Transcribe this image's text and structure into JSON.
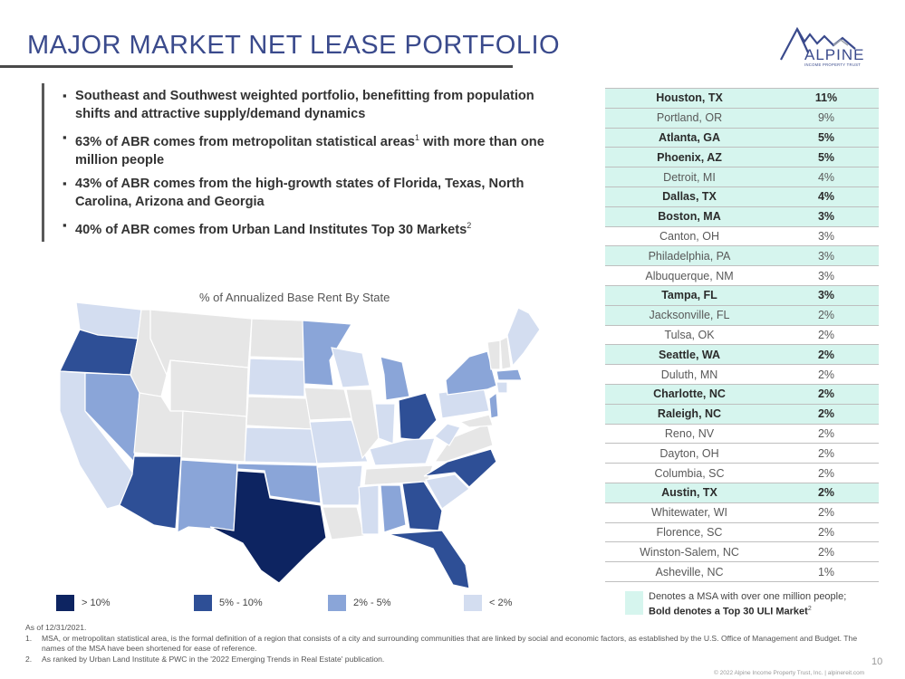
{
  "header": {
    "title": "MAJOR MARKET NET LEASE PORTFOLIO",
    "logo_text": "ALPINE",
    "logo_subtext": "INCOME PROPERTY TRUST"
  },
  "bullets": [
    "Southeast and Southwest weighted portfolio, benefitting from population shifts and attractive supply/demand dynamics",
    "63% of ABR comes from metropolitan statistical areas",
    "with more than one million people",
    "43% of ABR comes from the high-growth states of Florida, Texas, North Carolina, Arizona and Georgia",
    "40% of ABR comes from Urban Land Institutes Top 30 Markets"
  ],
  "superscripts": {
    "one": "1",
    "two": "2"
  },
  "map": {
    "title": "% of Annualized Base Rent By State",
    "colors": {
      "gt10": "#0d2461",
      "r5_10": "#2e4f96",
      "r2_5": "#8aa5d8",
      "lt2": "#d3ddf0",
      "none": "#e6e6e6"
    },
    "legend": [
      {
        "label": "> 10%",
        "color": "#0d2461"
      },
      {
        "label": "5% - 10%",
        "color": "#2e4f96"
      },
      {
        "label": "2% - 5%",
        "color": "#8aa5d8"
      },
      {
        "label": "< 2%",
        "color": "#d3ddf0"
      }
    ]
  },
  "table": {
    "highlight_color": "#d6f5ee",
    "rows": [
      {
        "city": "Houston, TX",
        "pct": "11%",
        "bold": true,
        "hl": true
      },
      {
        "city": "Portland, OR",
        "pct": "9%",
        "bold": false,
        "hl": true
      },
      {
        "city": "Atlanta, GA",
        "pct": "5%",
        "bold": true,
        "hl": true
      },
      {
        "city": "Phoenix, AZ",
        "pct": "5%",
        "bold": true,
        "hl": true
      },
      {
        "city": "Detroit, MI",
        "pct": "4%",
        "bold": false,
        "hl": true
      },
      {
        "city": "Dallas, TX",
        "pct": "4%",
        "bold": true,
        "hl": true
      },
      {
        "city": "Boston, MA",
        "pct": "3%",
        "bold": true,
        "hl": true
      },
      {
        "city": "Canton, OH",
        "pct": "3%",
        "bold": false,
        "hl": false
      },
      {
        "city": "Philadelphia, PA",
        "pct": "3%",
        "bold": false,
        "hl": true
      },
      {
        "city": "Albuquerque, NM",
        "pct": "3%",
        "bold": false,
        "hl": false
      },
      {
        "city": "Tampa, FL",
        "pct": "3%",
        "bold": true,
        "hl": true
      },
      {
        "city": "Jacksonville, FL",
        "pct": "2%",
        "bold": false,
        "hl": true
      },
      {
        "city": "Tulsa, OK",
        "pct": "2%",
        "bold": false,
        "hl": false
      },
      {
        "city": "Seattle, WA",
        "pct": "2%",
        "bold": true,
        "hl": true
      },
      {
        "city": "Duluth, MN",
        "pct": "2%",
        "bold": false,
        "hl": false
      },
      {
        "city": "Charlotte, NC",
        "pct": "2%",
        "bold": true,
        "hl": true
      },
      {
        "city": "Raleigh, NC",
        "pct": "2%",
        "bold": true,
        "hl": true
      },
      {
        "city": "Reno, NV",
        "pct": "2%",
        "bold": false,
        "hl": false
      },
      {
        "city": "Dayton, OH",
        "pct": "2%",
        "bold": false,
        "hl": false
      },
      {
        "city": "Columbia, SC",
        "pct": "2%",
        "bold": false,
        "hl": false
      },
      {
        "city": "Austin, TX",
        "pct": "2%",
        "bold": true,
        "hl": true
      },
      {
        "city": "Whitewater, WI",
        "pct": "2%",
        "bold": false,
        "hl": false
      },
      {
        "city": "Florence, SC",
        "pct": "2%",
        "bold": false,
        "hl": false
      },
      {
        "city": "Winston-Salem, NC",
        "pct": "2%",
        "bold": false,
        "hl": false
      },
      {
        "city": "Asheville, NC",
        "pct": "1%",
        "bold": false,
        "hl": false
      }
    ],
    "legend_line1": "Denotes a MSA with over one million people;",
    "legend_line2": "Bold denotes a Top 30 ULI Market"
  },
  "footnotes": {
    "asof": "As of 12/31/2021.",
    "n1": "1.",
    "fn1": "MSA, or metropolitan statistical area, is the formal definition of a region that consists of a city and surrounding communities that are linked by social and economic factors, as established by the U.S. Office of Management and Budget. The names of the MSA have been shortened for ease of reference.",
    "n2": "2.",
    "fn2": "As ranked by Urban Land Institute & PWC in the '2022 Emerging Trends in Real Estate' publication."
  },
  "page_number": "10",
  "copyright": "© 2022 Alpine Income Property Trust, Inc.  |  alpinereit.com"
}
